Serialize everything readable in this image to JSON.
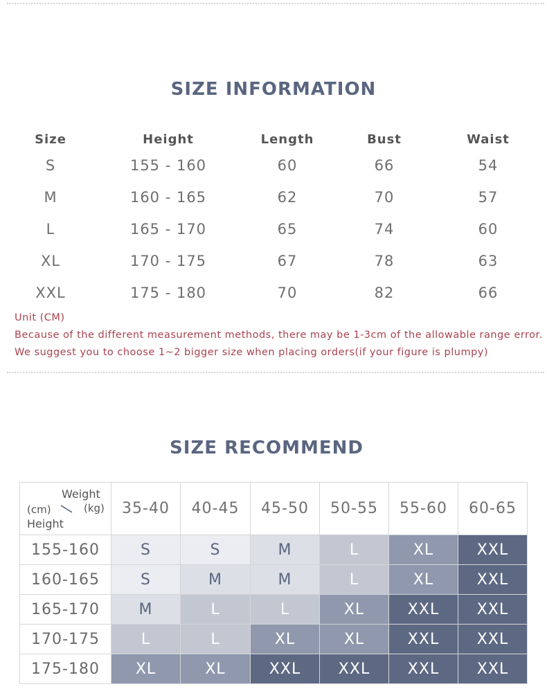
{
  "info": {
    "title": "SIZE INFORMATION",
    "headers": [
      "Size",
      "Height",
      "Length",
      "Bust",
      "Waist"
    ],
    "rows": [
      [
        "S",
        "155 - 160",
        "60",
        "66",
        "54"
      ],
      [
        "M",
        "160 - 165",
        "62",
        "70",
        "57"
      ],
      [
        "L",
        "165 - 170",
        "65",
        "74",
        "60"
      ],
      [
        "XL",
        "170 - 175",
        "67",
        "78",
        "63"
      ],
      [
        "XXL",
        "175 - 180",
        "70",
        "82",
        "66"
      ]
    ],
    "notes": [
      "Unit (CM)",
      "Because of the different measurement methods, there may be 1-3cm of the allowable range error.",
      "We suggest you to choose 1~2 bigger size when placing orders(if your figure is plumpy)"
    ]
  },
  "recommend": {
    "title": "SIZE RECOMMEND",
    "corner": {
      "weight": "Weight",
      "kg": "(kg)",
      "cm": "(cm)",
      "height": "Height"
    },
    "weights": [
      "35-40",
      "40-45",
      "45-50",
      "50-55",
      "55-60",
      "60-65"
    ],
    "rows": [
      {
        "height": "155-160",
        "sizes": [
          "S",
          "S",
          "M",
          "L",
          "XL",
          "XXL"
        ]
      },
      {
        "height": "160-165",
        "sizes": [
          "S",
          "M",
          "M",
          "L",
          "XL",
          "XXL"
        ]
      },
      {
        "height": "165-170",
        "sizes": [
          "M",
          "L",
          "L",
          "XL",
          "XXL",
          "XXL"
        ]
      },
      {
        "height": "170-175",
        "sizes": [
          "L",
          "L",
          "XL",
          "XL",
          "XXL",
          "XXL"
        ]
      },
      {
        "height": "175-180",
        "sizes": [
          "XL",
          "XL",
          "XXL",
          "XXL",
          "XXL",
          "XXL"
        ]
      }
    ],
    "size_colors": {
      "S": "#ecedf2",
      "M": "#dcdfe6",
      "L": "#c2c7d2",
      "XL": "#8f98ad",
      "XXL": "#5d6883"
    }
  }
}
